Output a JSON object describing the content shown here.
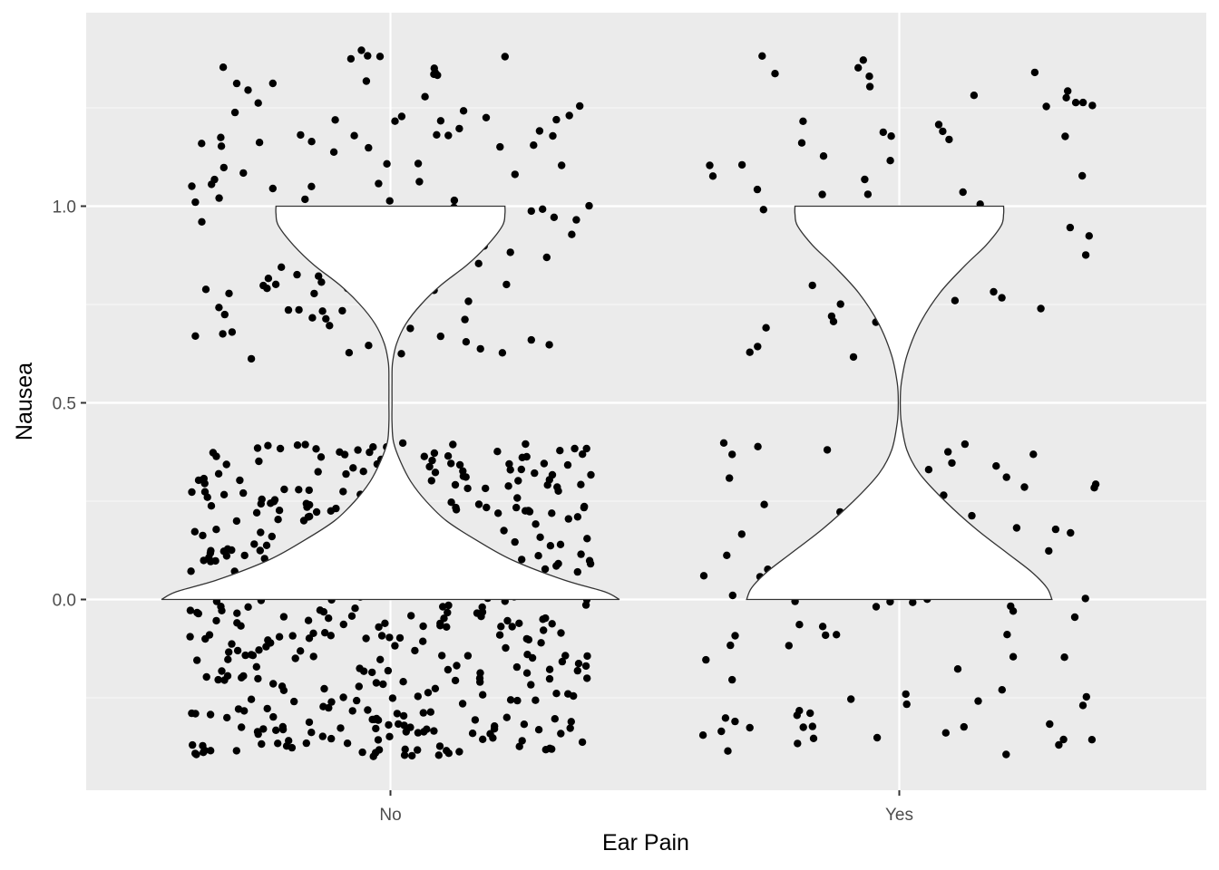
{
  "chart_data": {
    "type": "violin",
    "title": "",
    "xlabel": "Ear Pain",
    "ylabel": "Nausea",
    "categories": [
      "No",
      "Yes"
    ],
    "y_ticks": [
      "0.0",
      "0.5",
      "1.0"
    ],
    "ylim": [
      -0.48,
      1.42
    ],
    "grid": true,
    "legend": "none",
    "observed_values": [
      0,
      1
    ],
    "jitter_height": 0.4,
    "jitter_width": 0.4,
    "groups": [
      {
        "name": "No",
        "n": 600,
        "count_0": 470,
        "count_1": 130,
        "violin_halfwidth_by_y": [
          [
            0.0,
            0.45
          ],
          [
            0.02,
            0.42
          ],
          [
            0.05,
            0.34
          ],
          [
            0.1,
            0.24
          ],
          [
            0.15,
            0.17
          ],
          [
            0.2,
            0.11
          ],
          [
            0.25,
            0.07
          ],
          [
            0.3,
            0.04
          ],
          [
            0.35,
            0.02
          ],
          [
            0.4,
            0.006
          ],
          [
            0.45,
            0.003
          ],
          [
            0.5,
            0.003
          ],
          [
            0.55,
            0.003
          ],
          [
            0.6,
            0.004
          ],
          [
            0.65,
            0.012
          ],
          [
            0.7,
            0.03
          ],
          [
            0.75,
            0.06
          ],
          [
            0.8,
            0.1
          ],
          [
            0.85,
            0.15
          ],
          [
            0.9,
            0.19
          ],
          [
            0.95,
            0.22
          ],
          [
            0.98,
            0.225
          ],
          [
            1.0,
            0.225
          ]
        ]
      },
      {
        "name": "Yes",
        "n": 150,
        "count_0": 95,
        "count_1": 55,
        "violin_halfwidth_by_y": [
          [
            0.0,
            0.3
          ],
          [
            0.03,
            0.29
          ],
          [
            0.07,
            0.26
          ],
          [
            0.12,
            0.21
          ],
          [
            0.18,
            0.15
          ],
          [
            0.25,
            0.09
          ],
          [
            0.32,
            0.04
          ],
          [
            0.38,
            0.015
          ],
          [
            0.45,
            0.004
          ],
          [
            0.5,
            0.002
          ],
          [
            0.55,
            0.004
          ],
          [
            0.62,
            0.015
          ],
          [
            0.7,
            0.04
          ],
          [
            0.78,
            0.08
          ],
          [
            0.85,
            0.13
          ],
          [
            0.9,
            0.17
          ],
          [
            0.95,
            0.2
          ],
          [
            0.98,
            0.205
          ],
          [
            1.0,
            0.205
          ]
        ]
      }
    ]
  },
  "colors": {
    "panel_background": "#ebebeb",
    "grid_major": "#ffffff",
    "grid_minor": "#f5f5f5",
    "point": "#000000",
    "violin_fill": "#ffffff",
    "violin_outline": "#333333",
    "tick": "#333333"
  }
}
